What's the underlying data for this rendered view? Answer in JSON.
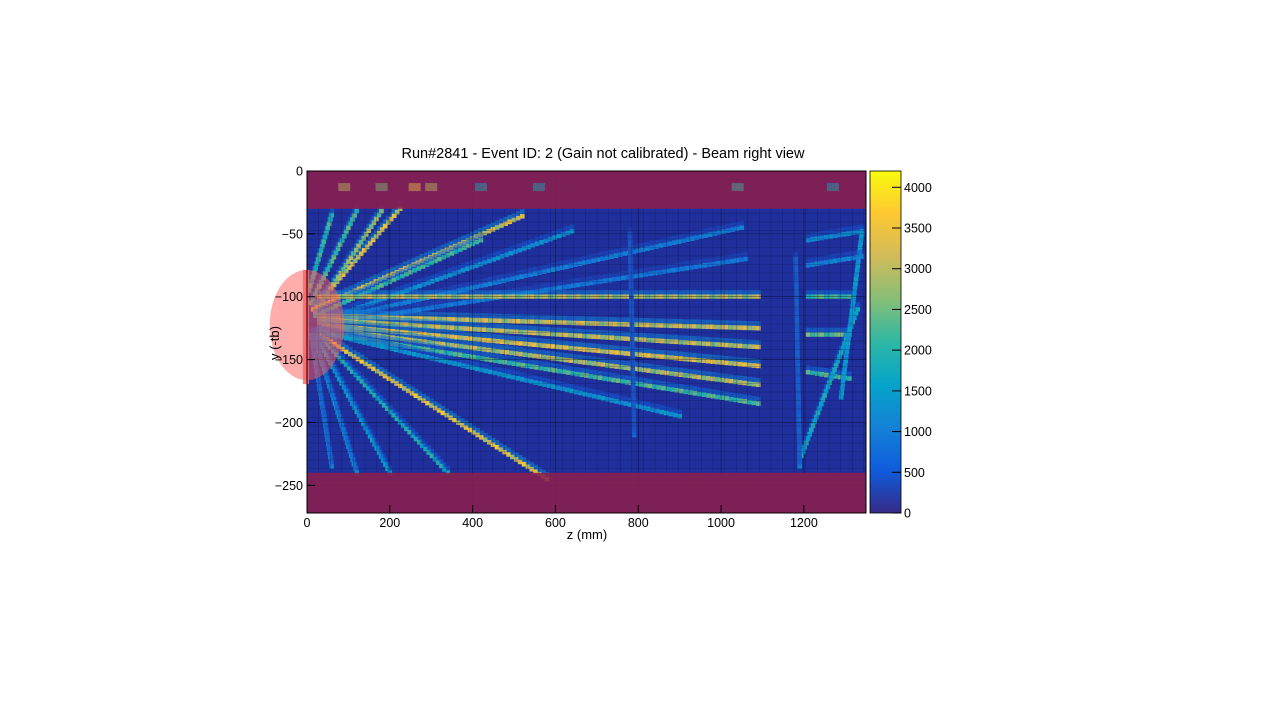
{
  "chart_data": {
    "type": "heatmap",
    "title": "Run#2841 - Event ID: 2 (Gain not calibrated) - Beam right view",
    "xlabel": "z (mm)",
    "ylabel": "y (-tb)",
    "xlim": [
      0,
      1350
    ],
    "ylim": [
      -272,
      0
    ],
    "x_ticks": [
      0,
      200,
      400,
      600,
      800,
      1000,
      1200
    ],
    "y_ticks": [
      0,
      -50,
      -100,
      -150,
      -200,
      -250
    ],
    "colorbar": {
      "range": [
        0,
        4200
      ],
      "ticks": [
        0,
        500,
        1000,
        1500,
        2000,
        2500,
        3000,
        3500,
        4000
      ],
      "colormap": [
        "#352a87",
        "#0f5cdd",
        "#1481d6",
        "#06a4ca",
        "#2eb7a4",
        "#87bf77",
        "#d1bb59",
        "#fec832",
        "#f9fb0e"
      ]
    },
    "background_color": "#1f2f9c",
    "masked_regions": [
      {
        "name": "top-band",
        "z": [
          0,
          1350
        ],
        "y": [
          0,
          -30
        ],
        "color": "#8b1f4e"
      },
      {
        "name": "bottom-band",
        "z": [
          0,
          1350
        ],
        "y": [
          -240,
          -272
        ],
        "color": "#8b1f4e"
      },
      {
        "name": "target-region",
        "z": [
          0,
          90
        ],
        "y": [
          -85,
          -160
        ],
        "color": "#ff5a5a"
      }
    ],
    "tracks": [
      {
        "z": [
          15,
          225
        ],
        "y": [
          -110,
          -30
        ],
        "intensity": 3800
      },
      {
        "z": [
          20,
          180
        ],
        "y": [
          -112,
          -32
        ],
        "intensity": 3200
      },
      {
        "z": [
          10,
          120
        ],
        "y": [
          -105,
          -32
        ],
        "intensity": 2600
      },
      {
        "z": [
          5,
          60
        ],
        "y": [
          -95,
          -35
        ],
        "intensity": 2400
      },
      {
        "z": [
          15,
          520
        ],
        "y": [
          -110,
          -36
        ],
        "intensity": 3700
      },
      {
        "z": [
          20,
          420
        ],
        "y": [
          -115,
          -55
        ],
        "intensity": 2500
      },
      {
        "z": [
          30,
          640
        ],
        "y": [
          -120,
          -48
        ],
        "intensity": 1500
      },
      {
        "z": [
          30,
          1050
        ],
        "y": [
          -120,
          -45
        ],
        "intensity": 1200
      },
      {
        "z": [
          40,
          1060
        ],
        "y": [
          -122,
          -70
        ],
        "intensity": 1100
      },
      {
        "z": [
          30,
          1090
        ],
        "y": [
          -100,
          -100
        ],
        "intensity": 3400
      },
      {
        "z": [
          30,
          1090
        ],
        "y": [
          -115,
          -125
        ],
        "intensity": 3600
      },
      {
        "z": [
          30,
          1090
        ],
        "y": [
          -118,
          -140
        ],
        "intensity": 3500
      },
      {
        "z": [
          30,
          1090
        ],
        "y": [
          -122,
          -155
        ],
        "intensity": 3800
      },
      {
        "z": [
          30,
          1090
        ],
        "y": [
          -125,
          -170
        ],
        "intensity": 3400
      },
      {
        "z": [
          30,
          1090
        ],
        "y": [
          -128,
          -185
        ],
        "intensity": 2600
      },
      {
        "z": [
          30,
          900
        ],
        "y": [
          -128,
          -195
        ],
        "intensity": 1600
      },
      {
        "z": [
          30,
          580
        ],
        "y": [
          -130,
          -245
        ],
        "intensity": 3900
      },
      {
        "z": [
          25,
          340
        ],
        "y": [
          -130,
          -240
        ],
        "intensity": 2200
      },
      {
        "z": [
          20,
          200
        ],
        "y": [
          -130,
          -240
        ],
        "intensity": 1800
      },
      {
        "z": [
          15,
          120
        ],
        "y": [
          -130,
          -240
        ],
        "intensity": 1500
      },
      {
        "z": [
          10,
          60
        ],
        "y": [
          -130,
          -235
        ],
        "intensity": 1300
      },
      {
        "z": [
          1210,
          1310
        ],
        "y": [
          -100,
          -100
        ],
        "intensity": 2600
      },
      {
        "z": [
          1210,
          1310
        ],
        "y": [
          -130,
          -130
        ],
        "intensity": 2800
      },
      {
        "z": [
          1210,
          1310
        ],
        "y": [
          -160,
          -165
        ],
        "intensity": 2600
      },
      {
        "z": [
          1190,
          1330
        ],
        "y": [
          -230,
          -110
        ],
        "intensity": 2000
      },
      {
        "z": [
          1290,
          1340
        ],
        "y": [
          -180,
          -50
        ],
        "intensity": 1700
      },
      {
        "z": [
          1210,
          1340
        ],
        "y": [
          -55,
          -48
        ],
        "intensity": 1400
      },
      {
        "z": [
          1210,
          1340
        ],
        "y": [
          -75,
          -68
        ],
        "intensity": 1300
      },
      {
        "z": [
          780,
          790
        ],
        "y": [
          -50,
          -210
        ],
        "intensity": 900
      },
      {
        "z": [
          1180,
          1190
        ],
        "y": [
          -70,
          -235
        ],
        "intensity": 1100
      }
    ]
  }
}
